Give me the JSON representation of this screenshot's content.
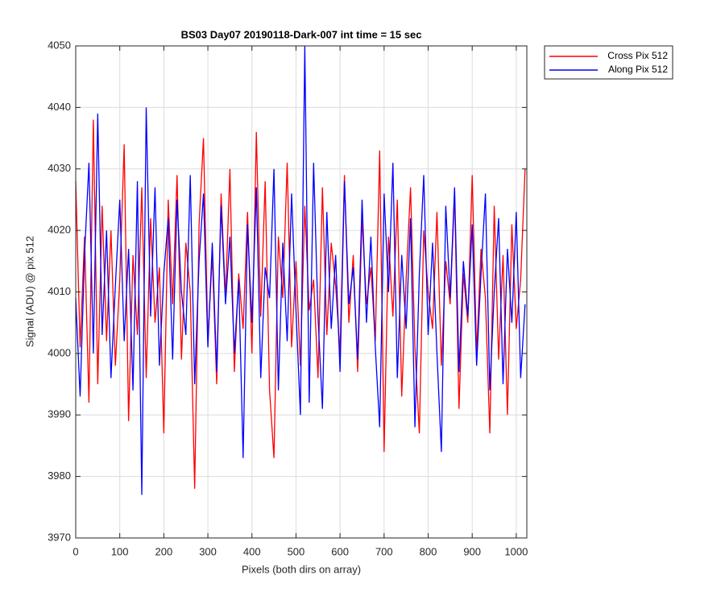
{
  "chart_data": {
    "type": "line",
    "title": "BS03 Day07 20190118-Dark-007 int time = 15 sec",
    "xlabel": "Pixels (both dirs on array)",
    "ylabel": "Signal (ADU) @ pix 512",
    "x": [
      0,
      10,
      20,
      30,
      40,
      50,
      60,
      70,
      80,
      90,
      100,
      110,
      120,
      130,
      140,
      150,
      160,
      170,
      180,
      190,
      200,
      210,
      220,
      230,
      240,
      250,
      260,
      270,
      280,
      290,
      300,
      310,
      320,
      330,
      340,
      350,
      360,
      370,
      380,
      390,
      400,
      410,
      420,
      430,
      440,
      450,
      460,
      470,
      480,
      490,
      500,
      510,
      520,
      530,
      540,
      550,
      560,
      570,
      580,
      590,
      600,
      610,
      620,
      630,
      640,
      650,
      660,
      670,
      680,
      690,
      700,
      710,
      720,
      730,
      740,
      750,
      760,
      770,
      780,
      790,
      800,
      810,
      820,
      830,
      840,
      850,
      860,
      870,
      880,
      890,
      900,
      910,
      920,
      930,
      940,
      950,
      960,
      970,
      980,
      990,
      1000,
      1010,
      1020
    ],
    "series": [
      {
        "name": "Cross Pix 512",
        "color": "#ff0000",
        "values": [
          4028,
          4001,
          4019,
          3992,
          4038,
          3995,
          4024,
          4002,
          4020,
          3998,
          4012,
          4034,
          3989,
          4016,
          4003,
          4027,
          3996,
          4022,
          4005,
          4014,
          3987,
          4025,
          4008,
          4029,
          3999,
          4018,
          4010,
          3978,
          4021,
          4035,
          4002,
          4016,
          3995,
          4026,
          4009,
          4030,
          3997,
          4013,
          4004,
          4023,
          4000,
          4036,
          4006,
          4028,
          3994,
          3983,
          4019,
          4009,
          4031,
          4001,
          4015,
          3998,
          4024,
          4007,
          4012,
          3996,
          4027,
          4003,
          4018,
          4011,
          4000,
          4029,
          4005,
          4016,
          3997,
          4022,
          4008,
          4014,
          4002,
          4033,
          3984,
          4019,
          4006,
          4025,
          3993,
          4012,
          4027,
          4001,
          3987,
          4020,
          4010,
          4004,
          4023,
          3998,
          4015,
          4008,
          4026,
          3991,
          4013,
          4005,
          4029,
          4000,
          4017,
          4009,
          3987,
          4024,
          3999,
          4016,
          3990,
          4021,
          4004,
          4012,
          4030
        ]
      },
      {
        "name": "Along Pix 512",
        "color": "#0000ff",
        "values": [
          4009,
          3993,
          4016,
          4031,
          4000,
          4039,
          4003,
          4020,
          3996,
          4011,
          4025,
          4002,
          4017,
          3994,
          4028,
          3977,
          4040,
          4006,
          4027,
          3998,
          4013,
          4022,
          3999,
          4025,
          4010,
          4003,
          4029,
          3995,
          4015,
          4026,
          4001,
          4018,
          3997,
          4024,
          4008,
          4019,
          4000,
          4012,
          3983,
          4021,
          4005,
          4027,
          3996,
          4014,
          4009,
          4030,
          3994,
          4018,
          4002,
          4026,
          4007,
          3990,
          4050,
          3992,
          4031,
          4006,
          3991,
          4023,
          4004,
          4016,
          3997,
          4028,
          4008,
          4014,
          3999,
          4025,
          4005,
          4019,
          4001,
          3988,
          4026,
          4010,
          4031,
          3996,
          4016,
          4004,
          4022,
          3988,
          4013,
          4029,
          4003,
          4018,
          4000,
          3984,
          4024,
          4009,
          4027,
          3997,
          4015,
          4006,
          4021,
          3998,
          4013,
          4026,
          3994,
          4010,
          4022,
          3995,
          4017,
          4005,
          4023,
          3996,
          4008
        ]
      }
    ],
    "xlim": [
      0,
      1024
    ],
    "xticks": [
      0,
      100,
      200,
      300,
      400,
      500,
      600,
      700,
      800,
      900,
      1000
    ],
    "ylim": [
      3970,
      4050
    ],
    "yticks": [
      3970,
      3980,
      3990,
      4000,
      4010,
      4020,
      4030,
      4040,
      4050
    ],
    "grid": true,
    "legend": "outside-upper-right"
  }
}
